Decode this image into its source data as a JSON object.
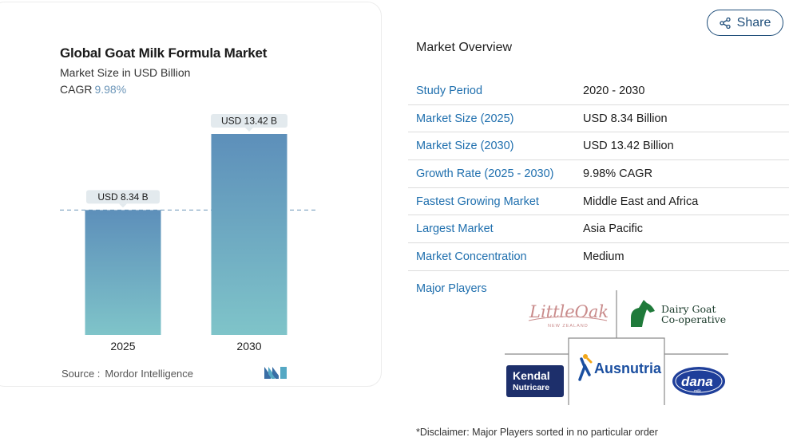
{
  "chart": {
    "title": "Global Goat Milk Formula Market",
    "subtitle": "Market Size in USD Billion",
    "cagr_label": "CAGR",
    "cagr_value": "9.98%",
    "source_label": "Source :",
    "source_value": "Mordor Intelligence"
  },
  "chart_data": {
    "type": "bar",
    "categories": [
      "2025",
      "2030"
    ],
    "values": [
      8.34,
      13.42
    ],
    "data_labels": [
      "USD 8.34 B",
      "USD 13.42 B"
    ],
    "title": "Global Goat Milk Formula Market",
    "subtitle": "Market Size in USD Billion",
    "ylim": [
      0,
      13.42
    ],
    "reference_line": 8.34,
    "colors": {
      "bar_top": "#5d8fba",
      "bar_bottom": "#7fc4c9",
      "label_bg": "#e3eaee",
      "dash": "#6b95b8"
    }
  },
  "share": {
    "label": "Share"
  },
  "overview": {
    "title": "Market Overview",
    "rows": [
      {
        "key": "Study Period",
        "value": "2020 - 2030"
      },
      {
        "key": "Market Size (2025)",
        "value": "USD 8.34 Billion"
      },
      {
        "key": "Market Size (2030)",
        "value": "USD 13.42 Billion"
      },
      {
        "key": "Growth Rate (2025 - 2030)",
        "value": "9.98% CAGR"
      },
      {
        "key": "Fastest Growing Market",
        "value": "Middle East and Africa"
      },
      {
        "key": "Largest Market",
        "value": "Asia Pacific"
      },
      {
        "key": "Market Concentration",
        "value": "Medium"
      }
    ]
  },
  "players": {
    "title": "Major Players",
    "logos": {
      "littleoak": {
        "name": "LittleOak",
        "sub": "NEW ZEALAND"
      },
      "dairygoat": {
        "line1": "Dairy Goat",
        "line2": "Co-operative"
      },
      "ausnutria": {
        "name": "Ausnutria"
      },
      "kendal": {
        "line1": "Kendal",
        "line2": "Nutricare"
      },
      "dana": {
        "name": "dana",
        "sub": "milk"
      }
    }
  },
  "disclaimer": "*Disclaimer: Major Players sorted in no particular order"
}
